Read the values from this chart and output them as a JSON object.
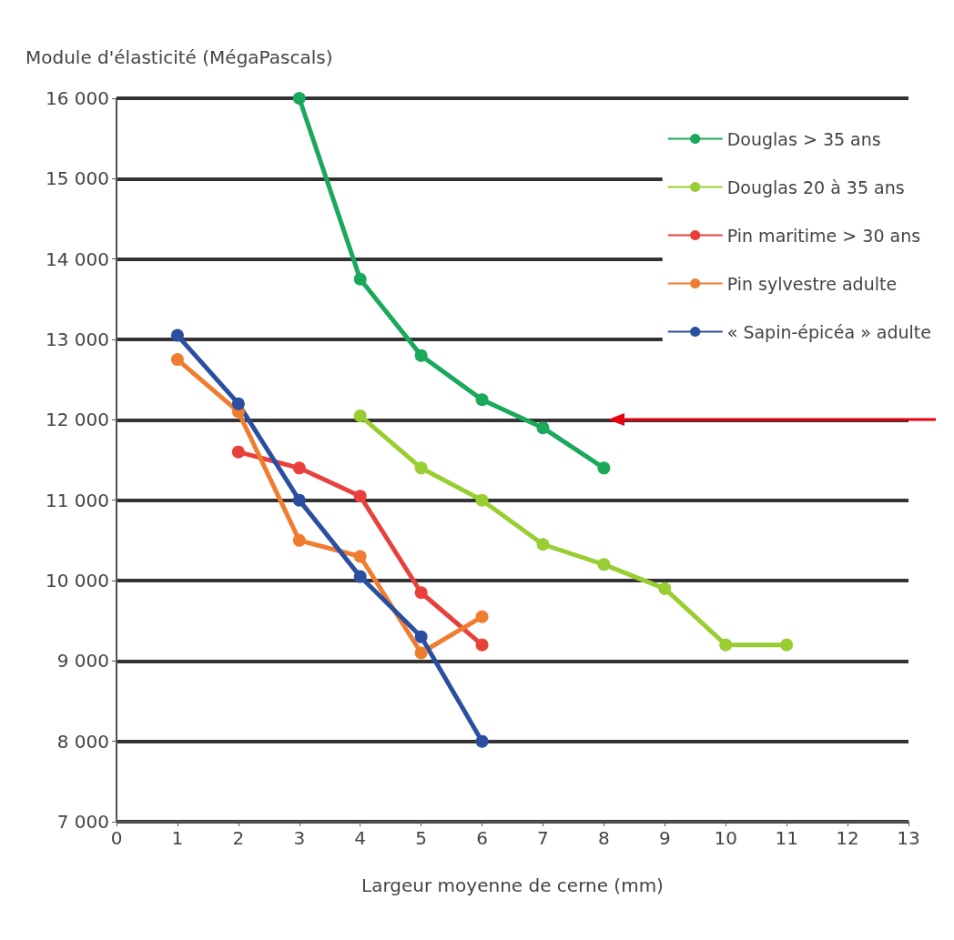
{
  "chart_data": {
    "type": "line",
    "xlabel": "Largeur moyenne de cerne (mm)",
    "ylabel": "Module d'élasticité (MégaPascals)",
    "xlim": [
      0,
      13
    ],
    "xticks": [
      0,
      1,
      2,
      3,
      4,
      5,
      6,
      7,
      8,
      9,
      10,
      11,
      12,
      13
    ],
    "ylim": [
      7000,
      16000
    ],
    "yticks": [
      {
        "value": 7000,
        "label": "7 000"
      },
      {
        "value": 8000,
        "label": "8 000"
      },
      {
        "value": 9000,
        "label": "9 000"
      },
      {
        "value": 10000,
        "label": "10 000"
      },
      {
        "value": 11000,
        "label": "11 000"
      },
      {
        "value": 12000,
        "label": "12 000"
      },
      {
        "value": 13000,
        "label": "13 000"
      },
      {
        "value": 14000,
        "label": "14 000"
      },
      {
        "value": 15000,
        "label": "15 000"
      },
      {
        "value": 16000,
        "label": "16 000"
      }
    ],
    "grid": "y",
    "legend": "top right",
    "marker": "circle",
    "line_style": "solid",
    "series": [
      {
        "name": "Douglas > 35 ans",
        "color": "#1aa85a",
        "x": [
          3,
          4,
          5,
          6,
          7,
          8
        ],
        "values": [
          16000,
          13750,
          12800,
          12250,
          11900,
          11400
        ]
      },
      {
        "name": "Douglas 20 à 35 ans",
        "color": "#9acd32",
        "x": [
          4,
          5,
          6,
          7,
          8,
          9,
          10,
          11
        ],
        "values": [
          12050,
          11400,
          11000,
          10450,
          10200,
          9900,
          9200,
          9200
        ]
      },
      {
        "name": "Pin maritime > 30 ans",
        "color": "#e8413c",
        "x": [
          2,
          3,
          4,
          5,
          6
        ],
        "values": [
          11600,
          11400,
          11050,
          9850,
          9200
        ]
      },
      {
        "name": "Pin sylvestre adulte",
        "color": "#f07c30",
        "x": [
          1,
          2,
          3,
          4,
          5,
          6
        ],
        "values": [
          12750,
          12100,
          10500,
          10300,
          9100,
          9550
        ]
      },
      {
        "name": "« Sapin-épicéa » adulte",
        "color": "#2b4fa0",
        "x": [
          1,
          2,
          3,
          4,
          5,
          6
        ],
        "values": [
          13050,
          12200,
          11000,
          10050,
          9300,
          8000
        ]
      }
    ],
    "ref_lines": [
      {
        "axis": "y",
        "value": 12000,
        "label": null,
        "color": "#e8000e"
      }
    ]
  }
}
